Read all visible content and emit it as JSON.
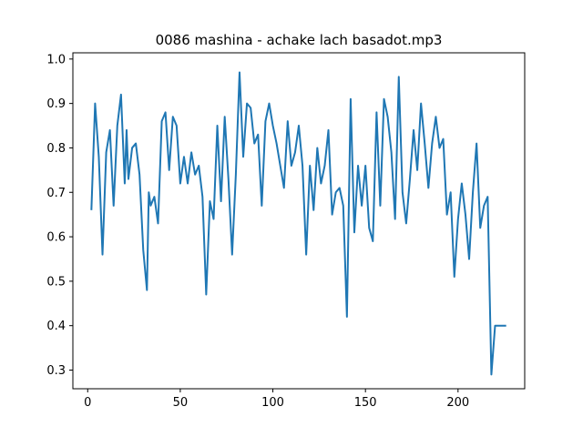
{
  "chart_data": {
    "type": "line",
    "title": "0086 mashina - achake lach basadot.mp3",
    "xlabel": "",
    "ylabel": "",
    "xlim": [
      -8,
      236
    ],
    "ylim": [
      0.258,
      1.014
    ],
    "xticks": [
      0,
      50,
      100,
      150,
      200
    ],
    "yticks": [
      0.3,
      0.4,
      0.5,
      0.6,
      0.7,
      0.8,
      0.9,
      1.0
    ],
    "xtick_labels": [
      "0",
      "50",
      "100",
      "150",
      "200"
    ],
    "ytick_labels": [
      "0.3",
      "0.4",
      "0.5",
      "0.6",
      "0.7",
      "0.8",
      "0.9",
      "1.0"
    ],
    "grid": false,
    "line_color": "#1f77b4",
    "series": [
      {
        "x": [
          2,
          4,
          6,
          8,
          10,
          12,
          14,
          16,
          18,
          20,
          21,
          22,
          24,
          26,
          28,
          30,
          32,
          33,
          34,
          36,
          38,
          40,
          42,
          44,
          46,
          48,
          50,
          52,
          54,
          56,
          58,
          60,
          62,
          64,
          66,
          68,
          70,
          72,
          74,
          76,
          78,
          80,
          82,
          84,
          86,
          88,
          90,
          92,
          94,
          96,
          98,
          100,
          102,
          104,
          106,
          108,
          110,
          112,
          114,
          116,
          118,
          120,
          122,
          124,
          126,
          128,
          130,
          132,
          134,
          136,
          138,
          140,
          142,
          144,
          146,
          148,
          150,
          152,
          154,
          156,
          158,
          160,
          162,
          164,
          166,
          168,
          170,
          172,
          174,
          176,
          178,
          180,
          182,
          184,
          186,
          188,
          190,
          192,
          194,
          196,
          198,
          200,
          202,
          204,
          206,
          208,
          210,
          212,
          214,
          216,
          218,
          220,
          222,
          224,
          226
        ],
        "y": [
          0.66,
          0.9,
          0.78,
          0.56,
          0.79,
          0.84,
          0.67,
          0.85,
          0.92,
          0.72,
          0.84,
          0.73,
          0.8,
          0.81,
          0.74,
          0.57,
          0.48,
          0.7,
          0.67,
          0.69,
          0.63,
          0.86,
          0.88,
          0.75,
          0.87,
          0.85,
          0.72,
          0.78,
          0.72,
          0.79,
          0.74,
          0.76,
          0.69,
          0.47,
          0.68,
          0.64,
          0.85,
          0.68,
          0.87,
          0.73,
          0.56,
          0.74,
          0.97,
          0.78,
          0.9,
          0.89,
          0.81,
          0.83,
          0.67,
          0.86,
          0.9,
          0.85,
          0.81,
          0.76,
          0.71,
          0.86,
          0.76,
          0.79,
          0.85,
          0.76,
          0.56,
          0.76,
          0.66,
          0.8,
          0.72,
          0.76,
          0.84,
          0.65,
          0.7,
          0.71,
          0.67,
          0.42,
          0.91,
          0.61,
          0.76,
          0.67,
          0.76,
          0.62,
          0.59,
          0.88,
          0.67,
          0.91,
          0.87,
          0.79,
          0.64,
          0.96,
          0.7,
          0.63,
          0.73,
          0.84,
          0.75,
          0.9,
          0.81,
          0.71,
          0.81,
          0.87,
          0.8,
          0.82,
          0.65,
          0.7,
          0.51,
          0.64,
          0.72,
          0.65,
          0.55,
          0.7,
          0.81,
          0.62,
          0.67,
          0.69,
          0.29,
          0.4,
          0.4,
          0.4,
          0.4
        ]
      }
    ]
  }
}
